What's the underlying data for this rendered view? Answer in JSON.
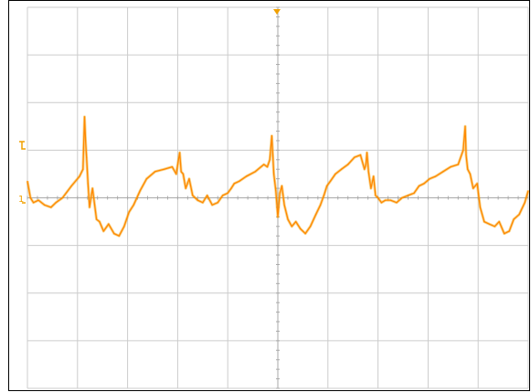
{
  "colors": {
    "background": "#ffffff",
    "grid": "#cccccc",
    "center_axis": "#aaaaaa",
    "frame": "#000000",
    "trace": "#f0a000",
    "trace_highlight": "#ff8800",
    "marker": "#f0a000"
  },
  "markers": {
    "trigger_icon": "trigger-position-marker",
    "trigger_level_icon": "trigger-level-marker",
    "channel1_icon": "channel-1-ground-marker",
    "channel1_label": "1"
  },
  "chart_data": {
    "type": "line",
    "title": "",
    "xlabel": "",
    "ylabel": "",
    "grid": true,
    "legend": "none",
    "xlim": [
      -5,
      5
    ],
    "ylim": [
      -4,
      4
    ],
    "x_divisions": 10,
    "y_divisions": 8,
    "series": [
      {
        "x": [
          -5.0,
          -4.94,
          -4.88,
          -4.78,
          -4.66,
          -4.53,
          -4.43,
          -4.3,
          -4.12,
          -3.96,
          -3.89,
          -3.86,
          -3.84,
          -3.82,
          -3.79,
          -3.76,
          -3.7,
          -3.62,
          -3.56,
          -3.48,
          -3.38,
          -3.27,
          -3.17,
          -3.07,
          -3.02,
          -2.97,
          -2.88,
          -2.75,
          -2.62,
          -2.45,
          -2.27,
          -2.11,
          -2.03,
          -1.99,
          -1.96,
          -1.93,
          -1.89,
          -1.84,
          -1.77,
          -1.7,
          -1.6,
          -1.5,
          -1.41,
          -1.31,
          -1.2,
          -1.1,
          -1.0,
          -0.93,
          -0.87,
          -0.77,
          -0.63,
          -0.45,
          -0.28,
          -0.21,
          -0.16,
          -0.12,
          -0.08,
          -0.04,
          0.0,
          0.04,
          0.08,
          0.13,
          0.2,
          0.28,
          0.36,
          0.45,
          0.55,
          0.65,
          0.76,
          0.85,
          0.92,
          0.98,
          1.05,
          1.15,
          1.27,
          1.4,
          1.53,
          1.65,
          1.73,
          1.76,
          1.78,
          1.81,
          1.86,
          1.91,
          1.95,
          2.0,
          2.07,
          2.15,
          2.25,
          2.37,
          2.48,
          2.6,
          2.72,
          2.82,
          2.92,
          3.03,
          3.15,
          3.3,
          3.45,
          3.6,
          3.7,
          3.74,
          3.76,
          3.79,
          3.84,
          3.9,
          3.98,
          4.04,
          4.12,
          4.22,
          4.33,
          4.42,
          4.52,
          4.62,
          4.71,
          4.82,
          4.93,
          5.0
        ],
        "y": [
          0.35,
          0.0,
          -0.1,
          -0.05,
          -0.15,
          -0.2,
          -0.1,
          0.0,
          0.25,
          0.45,
          0.6,
          1.7,
          1.2,
          0.85,
          0.3,
          -0.2,
          0.2,
          -0.45,
          -0.5,
          -0.7,
          -0.55,
          -0.75,
          -0.8,
          -0.6,
          -0.45,
          -0.3,
          -0.15,
          0.15,
          0.4,
          0.55,
          0.6,
          0.65,
          0.5,
          0.75,
          0.95,
          0.55,
          0.5,
          0.2,
          0.4,
          0.05,
          -0.05,
          -0.1,
          0.05,
          -0.15,
          -0.1,
          0.05,
          0.1,
          0.2,
          0.3,
          0.35,
          0.45,
          0.55,
          0.7,
          0.65,
          0.8,
          1.3,
          0.5,
          0.15,
          -0.4,
          0.1,
          0.25,
          -0.15,
          -0.45,
          -0.6,
          -0.5,
          -0.65,
          -0.75,
          -0.6,
          -0.35,
          -0.15,
          0.05,
          0.25,
          0.35,
          0.5,
          0.6,
          0.7,
          0.85,
          0.9,
          0.6,
          0.7,
          0.95,
          0.55,
          0.2,
          0.45,
          0.05,
          0.0,
          -0.1,
          -0.05,
          -0.05,
          -0.1,
          0.0,
          0.05,
          0.1,
          0.25,
          0.3,
          0.4,
          0.45,
          0.55,
          0.65,
          0.7,
          1.0,
          1.5,
          0.9,
          0.6,
          0.5,
          0.2,
          0.3,
          -0.2,
          -0.5,
          -0.55,
          -0.6,
          -0.5,
          -0.75,
          -0.7,
          -0.45,
          -0.35,
          -0.1,
          0.15
        ]
      }
    ]
  }
}
